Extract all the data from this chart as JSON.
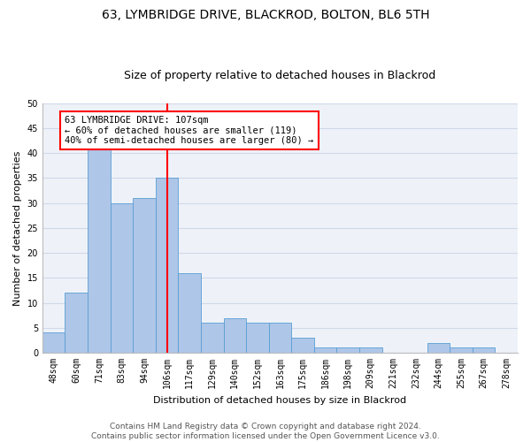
{
  "title_line1": "63, LYMBRIDGE DRIVE, BLACKROD, BOLTON, BL6 5TH",
  "title_line2": "Size of property relative to detached houses in Blackrod",
  "xlabel": "Distribution of detached houses by size in Blackrod",
  "ylabel": "Number of detached properties",
  "categories": [
    "48sqm",
    "60sqm",
    "71sqm",
    "83sqm",
    "94sqm",
    "106sqm",
    "117sqm",
    "129sqm",
    "140sqm",
    "152sqm",
    "163sqm",
    "175sqm",
    "186sqm",
    "198sqm",
    "209sqm",
    "221sqm",
    "232sqm",
    "244sqm",
    "255sqm",
    "267sqm",
    "278sqm"
  ],
  "values": [
    4,
    12,
    42,
    30,
    31,
    35,
    16,
    6,
    7,
    6,
    6,
    3,
    1,
    1,
    1,
    0,
    0,
    2,
    1,
    1,
    0
  ],
  "bar_color": "#aec6e8",
  "bar_edge_color": "#5a9fd4",
  "grid_color": "#d0d8e8",
  "background_color": "#eef2f8",
  "annotation_text": "63 LYMBRIDGE DRIVE: 107sqm\n← 60% of detached houses are smaller (119)\n40% of semi-detached houses are larger (80) →",
  "annotation_box_color": "white",
  "annotation_box_edge": "red",
  "vline_color": "red",
  "vline_index": 5,
  "ylim": [
    0,
    50
  ],
  "yticks": [
    0,
    5,
    10,
    15,
    20,
    25,
    30,
    35,
    40,
    45,
    50
  ],
  "footer_line1": "Contains HM Land Registry data © Crown copyright and database right 2024.",
  "footer_line2": "Contains public sector information licensed under the Open Government Licence v3.0.",
  "title_fontsize": 10,
  "subtitle_fontsize": 9,
  "axis_label_fontsize": 8,
  "tick_fontsize": 7,
  "annotation_fontsize": 7.5,
  "footer_fontsize": 6.5
}
